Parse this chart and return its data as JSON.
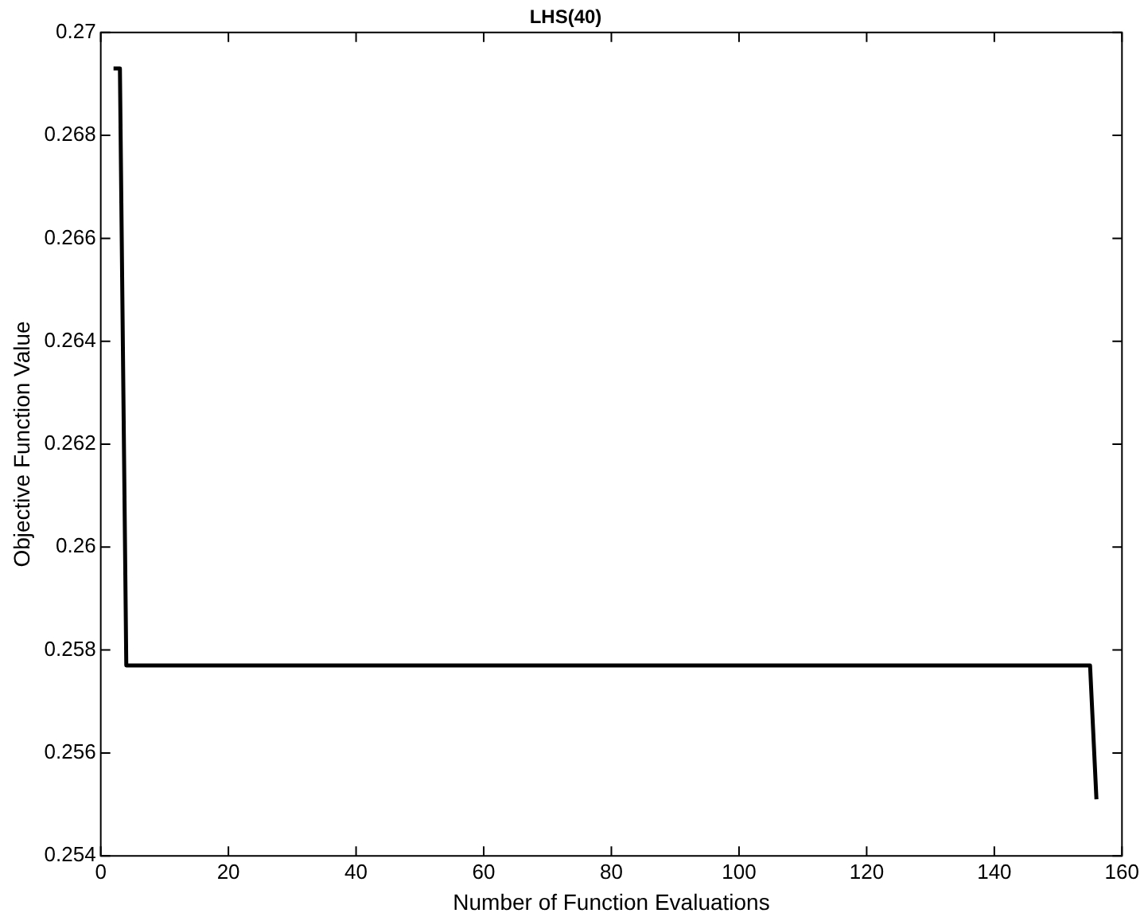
{
  "chart_data": {
    "type": "line",
    "title": "LHS(40)",
    "xlabel": "Number of Function Evaluations",
    "ylabel": "Objective Function Value",
    "x": [
      2,
      3,
      4,
      155,
      156
    ],
    "series": [
      {
        "color": "#000000",
        "values": [
          0.2693,
          0.2693,
          0.2577,
          0.2577,
          0.2551
        ]
      }
    ],
    "xlim": [
      0,
      160
    ],
    "xticks": [
      0,
      20,
      40,
      60,
      80,
      100,
      120,
      140,
      160
    ],
    "ylim": [
      0.254,
      0.27
    ],
    "yticks": [
      0.254,
      0.256,
      0.258,
      0.26,
      0.262,
      0.264,
      0.266,
      0.268,
      0.27
    ],
    "grid": false,
    "legend": false,
    "marker": "none",
    "line_style": "solid"
  }
}
